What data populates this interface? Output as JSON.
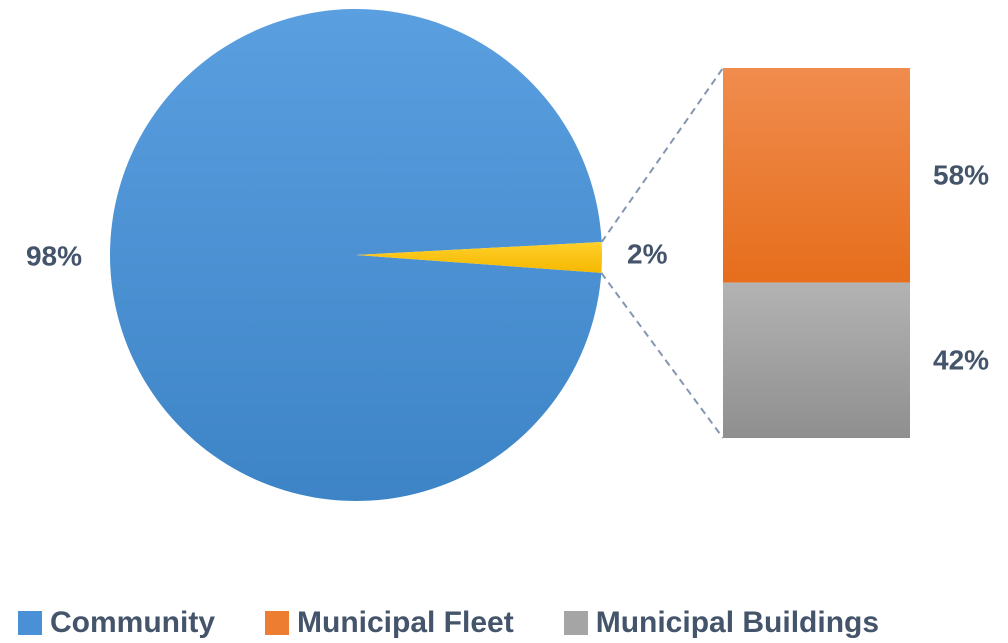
{
  "chart_data": {
    "type": "pie",
    "subtype": "bar-of-pie",
    "pie": [
      {
        "name": "Community",
        "value": 98,
        "label": "98%"
      },
      {
        "name": "Municipal",
        "value": 2,
        "label": "2%"
      }
    ],
    "breakout": [
      {
        "name": "Municipal Fleet",
        "value": 58,
        "label": "58%"
      },
      {
        "name": "Municipal Buildings",
        "value": 42,
        "label": "42%"
      }
    ],
    "legend": [
      {
        "label": "Community",
        "color": "#4a90d6"
      },
      {
        "label": "Municipal Fleet",
        "color": "#ed7d31"
      },
      {
        "label": "Municipal Buildings",
        "color": "#a5a5a5"
      }
    ],
    "legend_position": "bottom",
    "colors": {
      "community": "#4a90d6",
      "municipal": "#ffc000",
      "fleet": "#ed7d31",
      "buildings": "#a5a5a5",
      "label": "#44546a"
    }
  }
}
